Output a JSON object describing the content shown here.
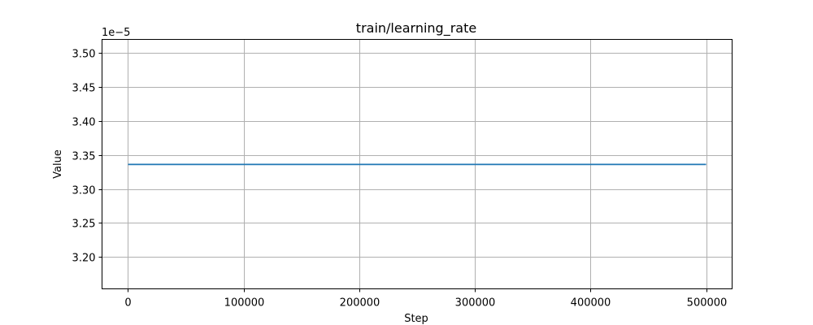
{
  "chart_data": {
    "type": "line",
    "title": "train/learning_rate",
    "xlabel": "Step",
    "ylabel": "Value",
    "y_offset_label": "1e−5",
    "y_scale_exponent": -5,
    "xlim": [
      -22500,
      522500
    ],
    "ylim": [
      3.153,
      3.52
    ],
    "x_ticks": [
      0,
      100000,
      200000,
      300000,
      400000,
      500000
    ],
    "x_tick_labels": [
      "0",
      "100000",
      "200000",
      "300000",
      "400000",
      "500000"
    ],
    "y_ticks": [
      3.2,
      3.25,
      3.3,
      3.35,
      3.4,
      3.45,
      3.5
    ],
    "y_tick_labels": [
      "3.20",
      "3.25",
      "3.30",
      "3.35",
      "3.40",
      "3.45",
      "3.50"
    ],
    "grid": true,
    "series": [
      {
        "color": "#1f77b4",
        "x": [
          0,
          500000
        ],
        "y": [
          3.336,
          3.336
        ]
      }
    ]
  }
}
